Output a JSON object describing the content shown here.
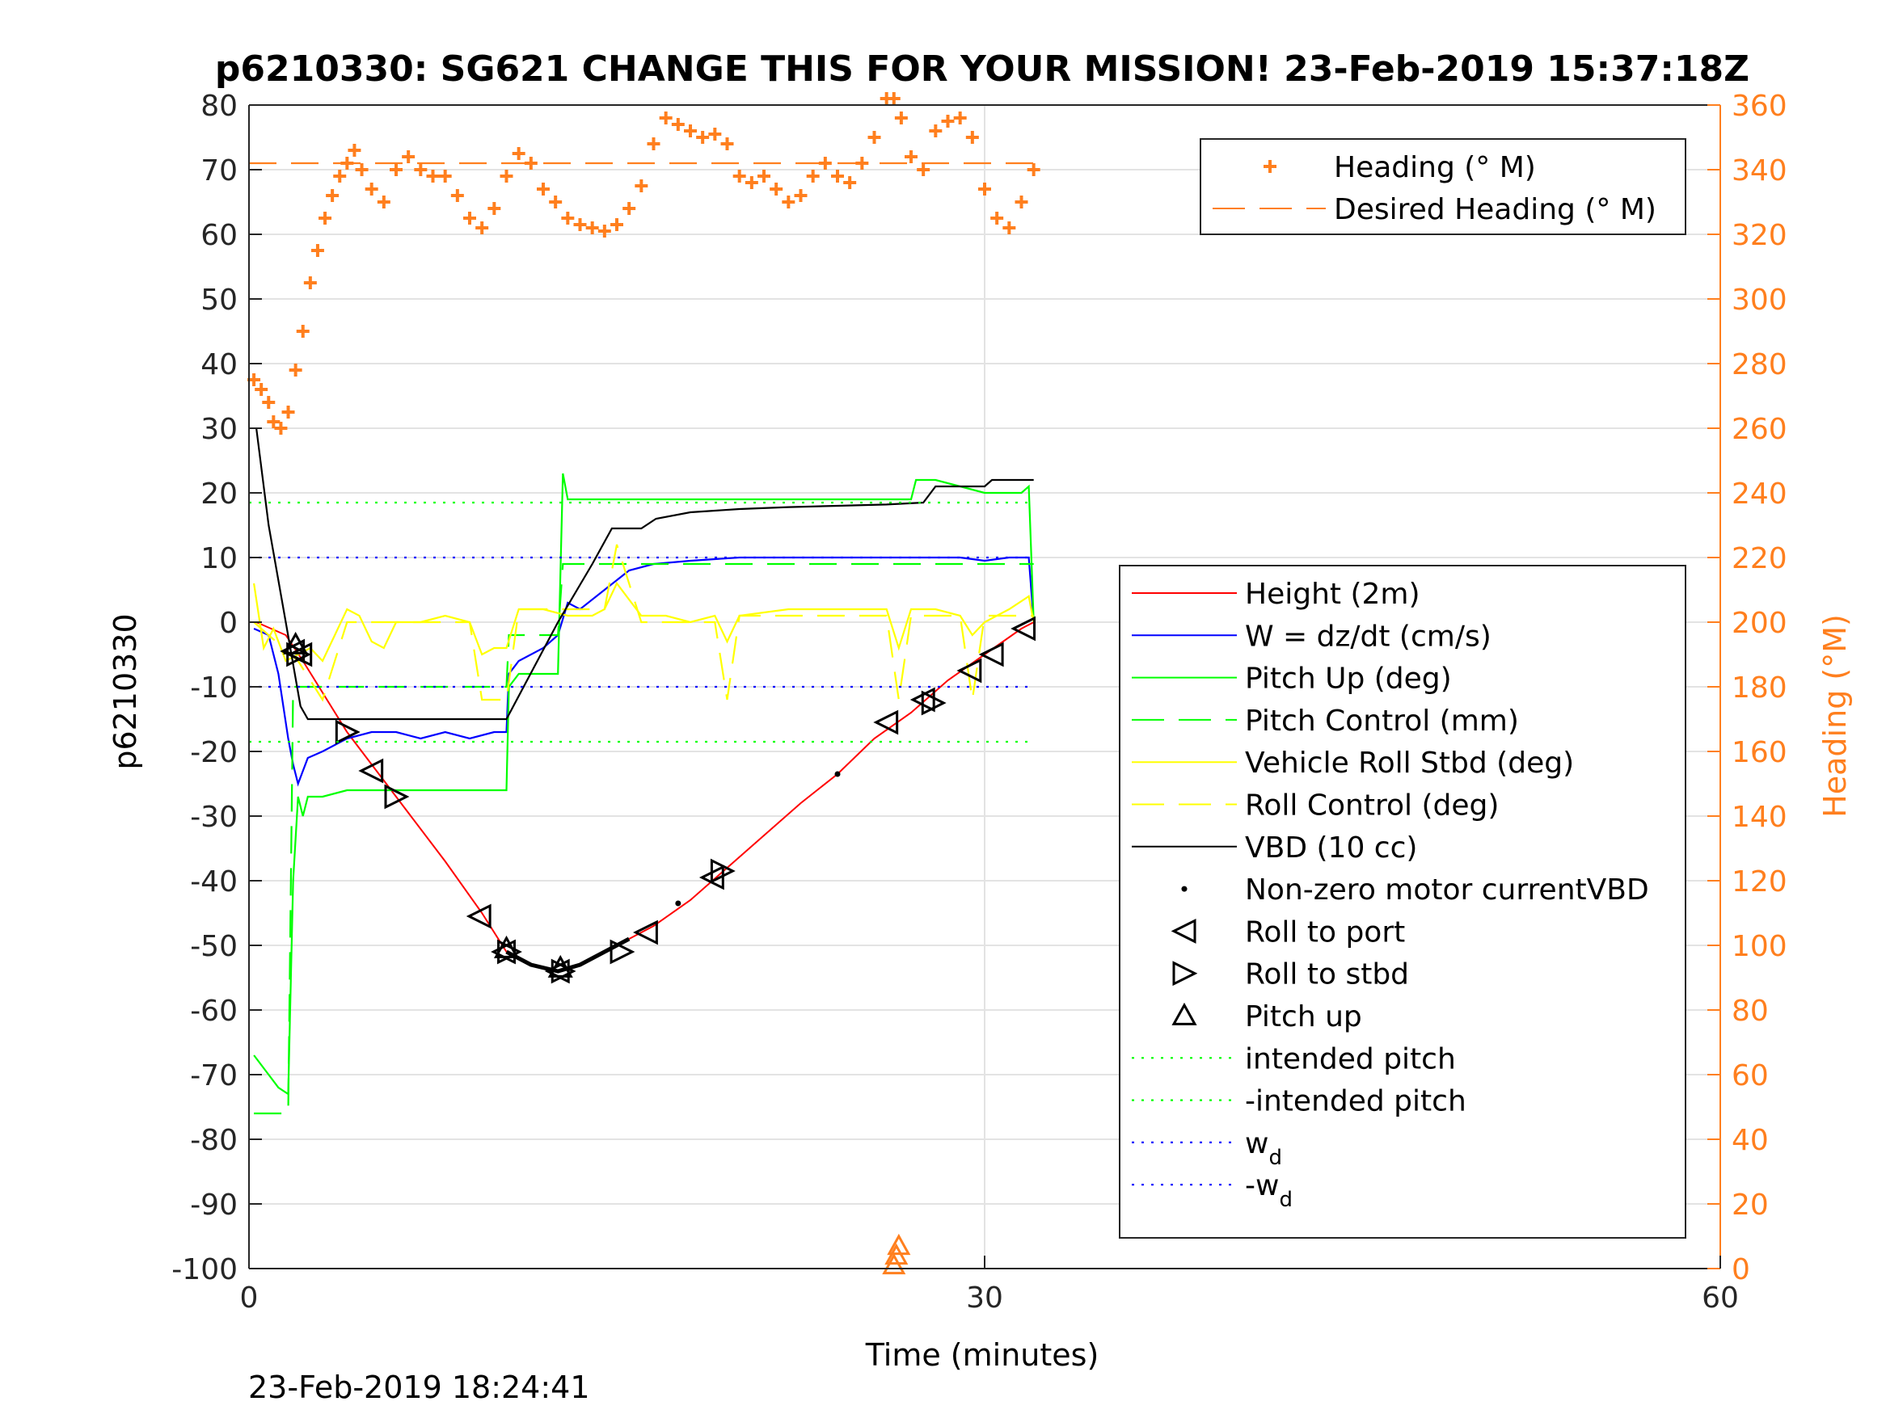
{
  "chart_data": {
    "type": "line",
    "title": "p6210330: SG621 CHANGE THIS FOR YOUR MISSION! 23-Feb-2019 15:37:18Z",
    "xlabel": "Time (minutes)",
    "ylabel": "p6210330",
    "y2label": "Heading (°M)",
    "timestamp": "23-Feb-2019 18:24:41",
    "xlim": [
      0,
      60
    ],
    "ylim": [
      -100,
      80
    ],
    "y2lim": [
      0,
      360
    ],
    "xticks": [
      0,
      30,
      60
    ],
    "yticks": [
      -100,
      -90,
      -80,
      -70,
      -60,
      -50,
      -40,
      -30,
      -20,
      -10,
      0,
      10,
      20,
      30,
      40,
      50,
      60,
      70,
      80
    ],
    "y2ticks": [
      0,
      20,
      40,
      60,
      80,
      100,
      120,
      140,
      160,
      180,
      200,
      220,
      240,
      260,
      280,
      300,
      320,
      340,
      360
    ],
    "grid": true,
    "colors": {
      "heading": "#ff7f1e",
      "height": "#ff0000",
      "w": "#0000ff",
      "pitch": "#00ff00",
      "roll": "#ffff00",
      "vbd": "#000000",
      "axis2": "#ff7f1e"
    },
    "legend_heading": {
      "placement": "top-right",
      "entries": [
        "Heading (° M)",
        "Desired Heading (° M)"
      ]
    },
    "legend_main": {
      "placement": "right",
      "entries": [
        {
          "label": "Height (2m)",
          "sub": ""
        },
        {
          "label": "W = dz/dt (cm/s)",
          "sub": ""
        },
        {
          "label": "Pitch Up (deg)",
          "sub": ""
        },
        {
          "label": "Pitch Control (mm)",
          "sub": ""
        },
        {
          "label": "Vehicle Roll Stbd (deg)",
          "sub": ""
        },
        {
          "label": "Roll Control (deg)",
          "sub": ""
        },
        {
          "label": "VBD (10 cc)",
          "sub": ""
        },
        {
          "label": "Non-zero motor currentVBD",
          "sub": ""
        },
        {
          "label": "Roll to port",
          "sub": ""
        },
        {
          "label": "Roll to stbd",
          "sub": ""
        },
        {
          "label": "Pitch up",
          "sub": ""
        },
        {
          "label": "intended pitch",
          "sub": ""
        },
        {
          "label": "-intended pitch",
          "sub": ""
        },
        {
          "label": "w",
          "sub": "d"
        },
        {
          "label": "-w",
          "sub": "d"
        }
      ]
    },
    "series": [
      {
        "name": "Heading (° M)",
        "axis": "right",
        "style": "plus",
        "x": [
          0.2,
          0.5,
          0.8,
          1.0,
          1.3,
          1.6,
          1.9,
          2.2,
          2.5,
          2.8,
          3.1,
          3.4,
          3.7,
          4.0,
          4.3,
          4.6,
          5.0,
          5.5,
          6.0,
          6.5,
          7.0,
          7.5,
          8.0,
          8.5,
          9.0,
          9.5,
          10.0,
          10.5,
          11.0,
          11.5,
          12.0,
          12.5,
          13.0,
          13.5,
          14.0,
          14.5,
          15.0,
          15.5,
          16.0,
          16.5,
          17.0,
          17.5,
          18.0,
          18.5,
          19.0,
          19.5,
          20.0,
          20.5,
          21.0,
          21.5,
          22.0,
          22.5,
          23.0,
          23.5,
          24.0,
          24.5,
          25.0,
          25.5,
          26.0,
          26.3,
          26.6,
          27.0,
          27.5,
          28.0,
          28.5,
          29.0,
          29.5,
          30.0,
          30.5,
          31.0,
          31.5,
          32.0
        ],
        "y": [
          275,
          272,
          268,
          262,
          260,
          265,
          278,
          290,
          305,
          315,
          325,
          332,
          338,
          342,
          346,
          340,
          334,
          330,
          340,
          344,
          340,
          338,
          338,
          332,
          325,
          322,
          328,
          338,
          345,
          342,
          334,
          330,
          325,
          323,
          322,
          321,
          323,
          328,
          335,
          348,
          356,
          354,
          352,
          350,
          351,
          348,
          338,
          336,
          338,
          334,
          330,
          332,
          338,
          342,
          338,
          336,
          342,
          350,
          362,
          362,
          356,
          344,
          340,
          352,
          355,
          356,
          350,
          334,
          325,
          322,
          330,
          340
        ]
      },
      {
        "name": "Desired Heading (° M)",
        "axis": "right",
        "style": "dashed",
        "x": [
          0,
          32
        ],
        "y": [
          342,
          342
        ]
      },
      {
        "name": "Height (2m)",
        "axis": "left",
        "style": "solid",
        "x": [
          0.3,
          1.5,
          2.2,
          4.0,
          6.0,
          8.0,
          9.5,
          10.5,
          11.5,
          12.6,
          13.5,
          14.5,
          15.5,
          16.5,
          18.0,
          19.5,
          21.0,
          22.5,
          24.0,
          25.5,
          27.0,
          28.5,
          30.0,
          31.5,
          32.0
        ],
        "y": [
          0,
          -2,
          -6,
          -17,
          -27,
          -37,
          -45,
          -51,
          -53,
          -54,
          -53,
          -51,
          -49,
          -47,
          -43,
          -38,
          -33,
          -28,
          -23.5,
          -18,
          -14,
          -9,
          -5,
          -1,
          0
        ]
      },
      {
        "name": "W = dz/dt (cm/s)",
        "axis": "left",
        "style": "solid",
        "x": [
          0.2,
          0.8,
          1.2,
          1.6,
          1.8,
          2.0,
          2.4,
          3.0,
          4.0,
          5.0,
          6.0,
          7.0,
          8.0,
          9.0,
          10.0,
          10.5,
          10.6,
          11.0,
          12.0,
          12.6,
          13.0,
          13.5,
          14.5,
          15.5,
          16.5,
          18.0,
          20.0,
          22.0,
          24.0,
          26.0,
          28.0,
          29.0,
          30.0,
          31.0,
          31.8,
          32.0
        ],
        "y": [
          -1,
          -2,
          -8,
          -18,
          -22,
          -25,
          -21,
          -20,
          -18,
          -17,
          -17,
          -18,
          -17,
          -18,
          -17,
          -17,
          -8,
          -6,
          -4,
          -2,
          3,
          2,
          5,
          8,
          9,
          9.5,
          10,
          10,
          10,
          10,
          10,
          10,
          9.5,
          10,
          10,
          0
        ]
      },
      {
        "name": "Pitch Up (deg)",
        "axis": "left",
        "style": "solid",
        "x": [
          0.2,
          0.8,
          1.2,
          1.6,
          1.8,
          2.0,
          2.2,
          2.4,
          3.0,
          4.0,
          6.0,
          8.0,
          10.0,
          10.5,
          10.6,
          11.0,
          12.0,
          12.6,
          12.8,
          13.0,
          13.5,
          15.0,
          17.0,
          20.0,
          23.0,
          26.0,
          27.0,
          27.2,
          28.0,
          30.0,
          31.5,
          31.8,
          32.0
        ],
        "y": [
          -67,
          -70,
          -72,
          -73,
          -40,
          -27,
          -30,
          -27,
          -27,
          -26,
          -26,
          -26,
          -26,
          -26,
          -10,
          -8,
          -8,
          -8,
          23,
          19,
          19,
          19,
          19,
          19,
          19,
          19,
          19,
          22,
          22,
          20,
          20,
          21,
          0
        ]
      },
      {
        "name": "Pitch Control (mm)",
        "axis": "left",
        "style": "dashed",
        "x": [
          0.2,
          1.6,
          1.8,
          10.5,
          10.6,
          12.6,
          12.8,
          32.0
        ],
        "y": [
          -76,
          -76,
          -10,
          -10,
          -2,
          -2,
          9,
          9
        ]
      },
      {
        "name": "Vehicle Roll Stbd (deg)",
        "axis": "left",
        "style": "solid",
        "x": [
          0.2,
          0.6,
          1.0,
          1.5,
          2.0,
          2.5,
          3.0,
          3.5,
          4.0,
          4.5,
          5.0,
          5.5,
          6.0,
          7.0,
          8.0,
          9.0,
          9.5,
          10.0,
          10.5,
          11.0,
          12.0,
          13.0,
          14.0,
          14.5,
          15.0,
          16.0,
          17.0,
          18.0,
          19.0,
          19.5,
          20.0,
          22.0,
          24.0,
          26.0,
          26.5,
          27.0,
          28.0,
          29.0,
          29.5,
          30.0,
          31.0,
          31.8,
          32.0
        ],
        "y": [
          6,
          -4,
          -1,
          -6,
          -5,
          -4,
          -6,
          -2,
          2,
          1,
          -3,
          -4,
          0,
          0,
          1,
          0,
          -5,
          -4,
          -4,
          2,
          2,
          1,
          1,
          2,
          6,
          1,
          1,
          0,
          1,
          -3,
          1,
          2,
          2,
          2,
          -4,
          2,
          2,
          1,
          -2,
          0,
          2,
          4,
          0
        ]
      },
      {
        "name": "Roll Control (deg)",
        "axis": "left",
        "style": "dashed",
        "x": [
          0.2,
          2.0,
          3.0,
          4.0,
          6.0,
          9.0,
          9.5,
          10.5,
          11.0,
          14.5,
          15.0,
          16.0,
          19.0,
          19.5,
          20.0,
          26.0,
          26.5,
          27.0,
          28.0,
          29.0,
          29.5,
          30.0,
          32.0
        ],
        "y": [
          0,
          -6,
          -12,
          0,
          0,
          0,
          -12,
          -12,
          2,
          2,
          12,
          0,
          0,
          -12,
          1,
          1,
          -12,
          1,
          1,
          1,
          -12,
          1,
          1
        ]
      },
      {
        "name": "VBD (10 cc)",
        "axis": "left",
        "style": "solid",
        "x": [
          0.3,
          0.8,
          1.5,
          2.1,
          2.4,
          4.0,
          6.0,
          8.0,
          10.5,
          12.6,
          14.0,
          14.8,
          16.0,
          16.6,
          18.0,
          20.0,
          22.0,
          24.0,
          26.0,
          27.5,
          28.0,
          30.0,
          30.3,
          32.0
        ],
        "y": [
          30,
          15,
          0,
          -13,
          -15,
          -15,
          -15,
          -15,
          -15,
          0,
          9,
          14.5,
          14.5,
          16,
          17,
          17.5,
          17.8,
          18,
          18.2,
          18.5,
          21,
          21,
          22,
          22
        ]
      },
      {
        "name": "Non-zero motor currentVBD",
        "axis": "left",
        "style": "dot",
        "x": [
          17.5,
          24.0
        ],
        "y": [
          -43.5,
          -23.5
        ]
      },
      {
        "name": "Roll to port",
        "axis": "left",
        "style": "tri-left",
        "x": [
          1.8,
          2.1,
          5.0,
          9.4,
          10.4,
          12.6,
          16.2,
          18.9,
          26.0,
          27.5,
          29.4,
          30.3,
          31.6
        ],
        "y": [
          -4.5,
          -5,
          -23,
          -45.5,
          -51,
          -54,
          -48,
          -39.5,
          -15.5,
          -12,
          -7.5,
          -5,
          -1
        ]
      },
      {
        "name": "Roll to stbd",
        "axis": "left",
        "style": "tri-right",
        "x": [
          2.0,
          4.0,
          6.0,
          10.6,
          12.8,
          15.2,
          19.3,
          27.9
        ],
        "y": [
          -5,
          -17,
          -27,
          -51,
          -54,
          -51,
          -38.5,
          -12.5
        ]
      },
      {
        "name": "Pitch up",
        "axis": "left",
        "style": "tri-up",
        "x": [
          1.9,
          10.5,
          12.7
        ],
        "y": [
          -3.5,
          -50.5,
          -53.5
        ]
      },
      {
        "name": "Pitch up",
        "axis": "right",
        "style": "tri-up-heading",
        "x": [
          26.3,
          26.4,
          26.5
        ],
        "y": [
          1,
          4,
          7
        ]
      },
      {
        "name": "intended pitch",
        "axis": "left",
        "style": "dotted",
        "x": [
          0,
          32
        ],
        "y": [
          18.5,
          18.5
        ]
      },
      {
        "name": "-intended pitch",
        "axis": "left",
        "style": "dotted",
        "x": [
          0,
          32
        ],
        "y": [
          -18.5,
          -18.5
        ]
      },
      {
        "name": "w_d",
        "axis": "left",
        "style": "dotted",
        "x": [
          0,
          32
        ],
        "y": [
          10,
          10
        ]
      },
      {
        "name": "-w_d",
        "axis": "left",
        "style": "dotted",
        "x": [
          0,
          32
        ],
        "y": [
          -10,
          -10
        ]
      }
    ]
  }
}
